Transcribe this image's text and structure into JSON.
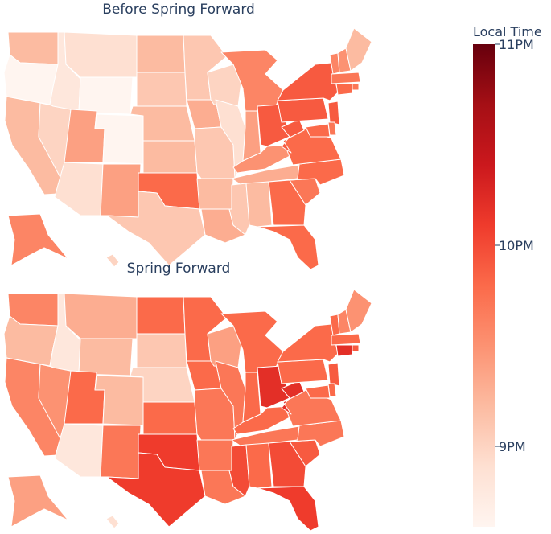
{
  "chart_data": [
    {
      "type": "choropleth",
      "title": "Before Spring Forward",
      "states": {
        "WA": 9.2,
        "OR": 8.6,
        "CA": 9.2,
        "NV": 9.0,
        "ID": 8.8,
        "MT": 8.9,
        "WY": 8.6,
        "UT": 9.4,
        "AZ": 8.9,
        "CO": 8.5,
        "NM": 9.4,
        "ND": 9.2,
        "SD": 9.1,
        "NE": 9.2,
        "KS": 9.2,
        "OK": 9.8,
        "TX": 9.1,
        "MN": 9.1,
        "IA": 9.3,
        "MO": 9.1,
        "AR": 9.2,
        "LA": 9.3,
        "WI": 9.0,
        "IL": 8.9,
        "MI": 9.6,
        "IN": 9.4,
        "OH": 9.9,
        "KY": 9.5,
        "TN": 9.3,
        "MS": 9.1,
        "AL": 9.2,
        "GA": 9.8,
        "FL": 9.8,
        "SC": 9.7,
        "NC": 9.8,
        "VA": 9.8,
        "WV": 9.9,
        "PA": 9.9,
        "NY": 9.9,
        "VT": 9.6,
        "NH": 9.5,
        "ME": 9.2,
        "MA": 9.7,
        "RI": 9.7,
        "CT": 9.8,
        "NJ": 9.9,
        "DE": 9.7,
        "MD": 9.8,
        "AK": 9.6,
        "HI": 9.0
      }
    },
    {
      "type": "choropleth",
      "title": "Spring Forward",
      "states": {
        "WA": 9.6,
        "OR": 9.2,
        "CA": 9.6,
        "NV": 9.5,
        "ID": 8.8,
        "MT": 9.3,
        "WY": 9.2,
        "UT": 9.8,
        "AZ": 8.8,
        "CO": 9.2,
        "NM": 9.7,
        "ND": 9.8,
        "SD": 9.1,
        "NE": 9.0,
        "KS": 9.8,
        "OK": 10.1,
        "TX": 10.1,
        "MN": 9.8,
        "IA": 9.8,
        "MO": 9.7,
        "AR": 9.7,
        "LA": 9.7,
        "WI": 9.4,
        "IL": 9.7,
        "MI": 9.8,
        "IN": 9.8,
        "OH": 10.2,
        "KY": 9.8,
        "TN": 9.7,
        "MS": 10.0,
        "AL": 9.8,
        "GA": 10.0,
        "FL": 10.1,
        "SC": 9.9,
        "NC": 9.7,
        "VA": 9.7,
        "WV": 10.2,
        "PA": 9.8,
        "NY": 9.8,
        "VT": 9.8,
        "NH": 9.6,
        "ME": 9.5,
        "MA": 9.8,
        "RI": 9.9,
        "CT": 10.2,
        "NJ": 9.9,
        "DE": 9.8,
        "MD": 9.8,
        "AK": 9.4,
        "HI": 8.9
      }
    }
  ],
  "colorbar": {
    "title": "Local Time",
    "range": [
      8.6,
      11.0
    ],
    "ticks": [
      {
        "value": 9,
        "label": "9PM"
      },
      {
        "value": 10,
        "label": "10PM"
      },
      {
        "value": 11,
        "label": "11PM"
      }
    ],
    "colorscale": [
      "#fff5f0",
      "#fee0d2",
      "#fcbba1",
      "#fc9272",
      "#fb6a4a",
      "#ef3b2c",
      "#cb181d",
      "#a50f15",
      "#67000d"
    ]
  }
}
